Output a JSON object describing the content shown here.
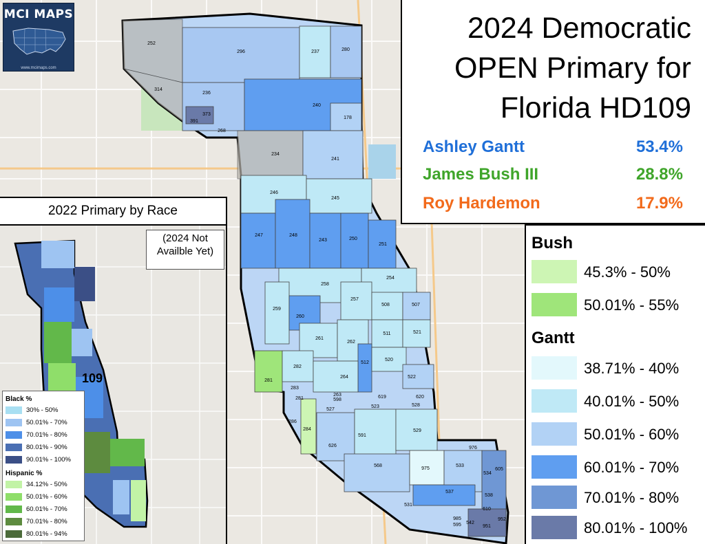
{
  "logo": {
    "name": "MCI MAPS",
    "url": "www.mcimaps.com"
  },
  "title": {
    "line1": "2024 Democratic",
    "line2": "OPEN Primary for",
    "line3": "Florida HD109"
  },
  "candidates": [
    {
      "name": "Ashley Gantt",
      "pct": "53.4%",
      "color": "#1f6fd8"
    },
    {
      "name": "James Bush III",
      "pct": "28.8%",
      "color": "#3fa52a"
    },
    {
      "name": "Roy Hardemon",
      "pct": "17.9%",
      "color": "#f26a1b"
    }
  ],
  "legend": {
    "bush_heading": "Bush",
    "bush_items": [
      {
        "label": "45.3% - 50%",
        "color": "#cdf5b4"
      },
      {
        "label": "50.01% - 55%",
        "color": "#9fe57a"
      }
    ],
    "gantt_heading": "Gantt",
    "gantt_items": [
      {
        "label": "38.71% - 40%",
        "color": "#e3f8fc"
      },
      {
        "label": "40.01% - 50%",
        "color": "#bfe9f6"
      },
      {
        "label": "50.01% - 60%",
        "color": "#b2d2f5"
      },
      {
        "label": "60.01% - 70%",
        "color": "#5f9ef0"
      },
      {
        "label": "70.01% - 80%",
        "color": "#6f97d4"
      },
      {
        "label": "80.01% - 100%",
        "color": "#6a7aa8"
      }
    ]
  },
  "inset": {
    "title": "2022 Primary by Race",
    "note_line1": "(2024 Not",
    "note_line2": "Availble Yet)",
    "district_label": "109",
    "black_heading": "Black %",
    "black_items": [
      {
        "label": "30% - 50%",
        "color": "#a8dff2"
      },
      {
        "label": "50.01% - 70%",
        "color": "#9ec4f2"
      },
      {
        "label": "70.01% - 80%",
        "color": "#4d8fe8"
      },
      {
        "label": "80.01% - 90%",
        "color": "#4a6fb3"
      },
      {
        "label": "90.01% - 100%",
        "color": "#3b4f86"
      }
    ],
    "hispanic_heading": "Hispanic %",
    "hispanic_items": [
      {
        "label": "34.12% - 50%",
        "color": "#c2f3a6"
      },
      {
        "label": "50.01% - 60%",
        "color": "#8fde6a"
      },
      {
        "label": "60.01% - 70%",
        "color": "#62b84a"
      },
      {
        "label": "70.01% - 80%",
        "color": "#5d8b3f"
      },
      {
        "label": "80.01% - 94%",
        "color": "#4c6b3a"
      }
    ]
  },
  "precincts": [
    "252",
    "296",
    "237",
    "280",
    "314",
    "236",
    "240",
    "178",
    "373",
    "391",
    "268",
    "234",
    "241",
    "246",
    "245",
    "247",
    "248",
    "243",
    "250",
    "251",
    "258",
    "254",
    "259",
    "260",
    "257",
    "508",
    "507",
    "261",
    "262",
    "511",
    "521",
    "512",
    "520",
    "281",
    "282",
    "283",
    "264",
    "522",
    "263",
    "598",
    "619",
    "620",
    "281",
    "282",
    "527",
    "523",
    "528",
    "286",
    "284",
    "626",
    "591",
    "529",
    "568",
    "976",
    "975",
    "533",
    "534",
    "605",
    "537",
    "538",
    "531",
    "610",
    "985",
    "542",
    "951",
    "952",
    "595"
  ]
}
